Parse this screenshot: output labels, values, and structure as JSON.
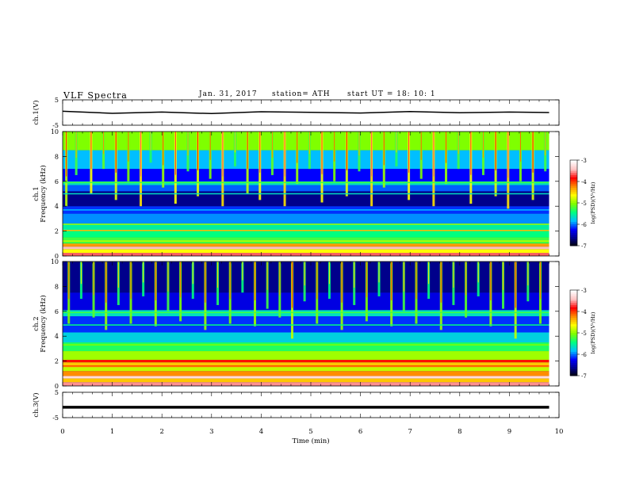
{
  "header": {
    "title": "VLF  Spectra",
    "date": "Jan. 31, 2017",
    "station": "station= ATH",
    "start": "start  UT  =   18: 10: 1"
  },
  "colors": {
    "spectrogram_background": "#0a1e9c",
    "trace": "#000000",
    "colormap": [
      "#000000",
      "#00008b",
      "#0000ff",
      "#00bfff",
      "#00ff7f",
      "#7fff00",
      "#ffff00",
      "#ff8c00",
      "#ff0000",
      "#ffc0c0",
      "#ffffff"
    ]
  },
  "chart_data": [
    {
      "type": "line",
      "panel": "ch1-waveform",
      "ylabel": "ch.1(V)",
      "ylim": [
        -5,
        5
      ],
      "y_ticks": [
        "5",
        "-5"
      ],
      "xlim": [
        0,
        10
      ],
      "series": [
        {
          "x": [
            0,
            1,
            2,
            3,
            4,
            5,
            6,
            7,
            8,
            9,
            9.8
          ],
          "y": [
            0.5,
            -0.3,
            0.2,
            -0.4,
            0.3,
            0.1,
            -0.2,
            0.4,
            -0.1,
            0.2,
            0.0
          ]
        }
      ]
    },
    {
      "type": "heatmap",
      "panel": "ch1-spectrogram",
      "ylabel": "ch.1\nFrequency  (kHz)",
      "ylim": [
        0,
        10
      ],
      "y_ticks": [
        "0",
        "2",
        "4",
        "6",
        "8",
        "10"
      ],
      "xlim": [
        0,
        10
      ],
      "data_end_min": 9.8,
      "colorbar": {
        "label": "log(PSD)(V²/Hz)",
        "range": [
          -7,
          -3
        ],
        "ticks": [
          "-3",
          "-4",
          "-5",
          "-6",
          "-7"
        ]
      },
      "bands": [
        {
          "f": [
            0,
            0.25
          ],
          "level": -3.6
        },
        {
          "f": [
            0.25,
            0.55
          ],
          "level": -4.6
        },
        {
          "f": [
            0.55,
            0.75
          ],
          "level": -3.4
        },
        {
          "f": [
            0.75,
            1.0
          ],
          "level": -4.3
        },
        {
          "f": [
            1.0,
            1.5
          ],
          "level": -5.2
        },
        {
          "f": [
            1.5,
            2.0
          ],
          "level": -5.4
        },
        {
          "f": [
            2.0,
            2.1
          ],
          "level": -4.4
        },
        {
          "f": [
            2.1,
            2.6
          ],
          "level": -5.5
        },
        {
          "f": [
            2.6,
            3.4
          ],
          "level": -5.9
        },
        {
          "f": [
            3.4,
            4.0
          ],
          "level": -6.1
        },
        {
          "f": [
            4.0,
            5.2
          ],
          "level": -6.6
        },
        {
          "f": [
            5.2,
            5.7
          ],
          "level": -6.0
        },
        {
          "f": [
            5.7,
            6.0
          ],
          "level": -5.6
        },
        {
          "f": [
            6.0,
            7.0
          ],
          "level": -6.2
        },
        {
          "f": [
            7.0,
            8.5
          ],
          "level": -5.8
        },
        {
          "f": [
            8.5,
            10.0
          ],
          "level": -5.0
        }
      ],
      "lines": [
        {
          "f": 5.9,
          "level": -5.2
        },
        {
          "f": 5.0,
          "level": -5.6
        },
        {
          "f": 3.7,
          "level": -5.8
        },
        {
          "f": 2.55,
          "level": -4.9
        },
        {
          "f": 1.2,
          "level": -4.8
        },
        {
          "f": 0.85,
          "level": -4.2
        }
      ],
      "bursts": [
        {
          "t": 0.05,
          "f_top": 10.0,
          "f_bot": 4.0,
          "level": -4.8
        },
        {
          "t": 0.25,
          "f_top": 10.0,
          "f_bot": 6.5,
          "level": -5.2
        },
        {
          "t": 0.55,
          "f_top": 10.0,
          "f_bot": 5.0,
          "level": -4.6
        },
        {
          "t": 0.8,
          "f_top": 10.0,
          "f_bot": 7.0,
          "level": -5.1
        },
        {
          "t": 1.05,
          "f_top": 10.0,
          "f_bot": 4.5,
          "level": -4.7
        },
        {
          "t": 1.3,
          "f_top": 10.0,
          "f_bot": 6.0,
          "level": -5.0
        },
        {
          "t": 1.55,
          "f_top": 10.0,
          "f_bot": 4.0,
          "level": -4.5
        },
        {
          "t": 1.75,
          "f_top": 10.0,
          "f_bot": 7.5,
          "level": -5.3
        },
        {
          "t": 2.0,
          "f_top": 10.0,
          "f_bot": 5.5,
          "level": -4.9
        },
        {
          "t": 2.25,
          "f_top": 10.0,
          "f_bot": 4.2,
          "level": -4.6
        },
        {
          "t": 2.5,
          "f_top": 10.0,
          "f_bot": 6.8,
          "level": -5.2
        },
        {
          "t": 2.7,
          "f_top": 10.0,
          "f_bot": 4.8,
          "level": -4.7
        },
        {
          "t": 2.95,
          "f_top": 10.0,
          "f_bot": 6.2,
          "level": -5.0
        },
        {
          "t": 3.2,
          "f_top": 10.0,
          "f_bot": 4.0,
          "level": -4.5
        },
        {
          "t": 3.45,
          "f_top": 10.0,
          "f_bot": 7.2,
          "level": -5.3
        },
        {
          "t": 3.7,
          "f_top": 10.0,
          "f_bot": 5.0,
          "level": -4.8
        },
        {
          "t": 3.95,
          "f_top": 10.0,
          "f_bot": 4.5,
          "level": -4.6
        },
        {
          "t": 4.2,
          "f_top": 10.0,
          "f_bot": 6.5,
          "level": -5.1
        },
        {
          "t": 4.45,
          "f_top": 10.0,
          "f_bot": 4.0,
          "level": -4.5
        },
        {
          "t": 4.7,
          "f_top": 10.0,
          "f_bot": 5.8,
          "level": -4.9
        },
        {
          "t": 4.95,
          "f_top": 10.0,
          "f_bot": 7.0,
          "level": -5.2
        },
        {
          "t": 5.2,
          "f_top": 10.0,
          "f_bot": 4.3,
          "level": -4.6
        },
        {
          "t": 5.45,
          "f_top": 10.0,
          "f_bot": 6.0,
          "level": -5.0
        },
        {
          "t": 5.7,
          "f_top": 10.0,
          "f_bot": 4.8,
          "level": -4.7
        },
        {
          "t": 5.95,
          "f_top": 10.0,
          "f_bot": 6.8,
          "level": -5.2
        },
        {
          "t": 6.2,
          "f_top": 10.0,
          "f_bot": 4.0,
          "level": -4.5
        },
        {
          "t": 6.45,
          "f_top": 10.0,
          "f_bot": 5.5,
          "level": -4.9
        },
        {
          "t": 6.7,
          "f_top": 10.0,
          "f_bot": 7.2,
          "level": -5.3
        },
        {
          "t": 6.95,
          "f_top": 10.0,
          "f_bot": 4.5,
          "level": -4.6
        },
        {
          "t": 7.2,
          "f_top": 10.0,
          "f_bot": 6.2,
          "level": -5.0
        },
        {
          "t": 7.45,
          "f_top": 10.0,
          "f_bot": 4.0,
          "level": -4.5
        },
        {
          "t": 7.7,
          "f_top": 10.0,
          "f_bot": 5.8,
          "level": -4.9
        },
        {
          "t": 7.95,
          "f_top": 10.0,
          "f_bot": 7.0,
          "level": -5.2
        },
        {
          "t": 8.2,
          "f_top": 10.0,
          "f_bot": 4.2,
          "level": -4.6
        },
        {
          "t": 8.45,
          "f_top": 10.0,
          "f_bot": 6.5,
          "level": -5.1
        },
        {
          "t": 8.7,
          "f_top": 10.0,
          "f_bot": 4.8,
          "level": -4.7
        },
        {
          "t": 8.95,
          "f_top": 10.0,
          "f_bot": 3.8,
          "level": -4.5
        },
        {
          "t": 9.2,
          "f_top": 10.0,
          "f_bot": 6.0,
          "level": -5.0
        },
        {
          "t": 9.45,
          "f_top": 10.0,
          "f_bot": 4.5,
          "level": -4.7
        },
        {
          "t": 9.7,
          "f_top": 10.0,
          "f_bot": 6.8,
          "level": -5.2
        }
      ]
    },
    {
      "type": "heatmap",
      "panel": "ch2-spectrogram",
      "ylabel": "ch.2\nFrequency  (kHz)",
      "ylim": [
        0,
        10
      ],
      "y_ticks": [
        "0",
        "2",
        "4",
        "6",
        "8",
        "10"
      ],
      "xlim": [
        0,
        10
      ],
      "data_end_min": 9.8,
      "colorbar": {
        "label": "log(PSD)(V²/Hz)",
        "range": [
          -7,
          -3
        ],
        "ticks": [
          "-3",
          "-4",
          "-5",
          "-6",
          "-7"
        ]
      },
      "bands": [
        {
          "f": [
            0,
            0.3
          ],
          "level": -3.5
        },
        {
          "f": [
            0.3,
            0.6
          ],
          "level": -4.4
        },
        {
          "f": [
            0.6,
            0.8
          ],
          "level": -3.3
        },
        {
          "f": [
            0.8,
            1.2
          ],
          "level": -4.2
        },
        {
          "f": [
            1.2,
            1.5
          ],
          "level": -4.8
        },
        {
          "f": [
            1.5,
            1.9
          ],
          "level": -4.4
        },
        {
          "f": [
            1.9,
            2.1
          ],
          "level": -3.9
        },
        {
          "f": [
            2.1,
            2.8
          ],
          "level": -4.9
        },
        {
          "f": [
            2.8,
            3.5
          ],
          "level": -5.3
        },
        {
          "f": [
            3.5,
            4.3
          ],
          "level": -5.7
        },
        {
          "f": [
            4.3,
            5.6
          ],
          "level": -6.1
        },
        {
          "f": [
            5.6,
            6.1
          ],
          "level": -5.6
        },
        {
          "f": [
            6.1,
            7.5
          ],
          "level": -6.3
        },
        {
          "f": [
            7.5,
            10.0
          ],
          "level": -6.6
        }
      ],
      "lines": [
        {
          "f": 5.9,
          "level": -5.2
        },
        {
          "f": 4.9,
          "level": -5.4
        },
        {
          "f": 3.3,
          "level": -5.0
        },
        {
          "f": 2.0,
          "level": -3.8
        },
        {
          "f": 1.6,
          "level": -4.0
        },
        {
          "f": 0.7,
          "level": -3.2
        }
      ],
      "bursts": [
        {
          "t": 0.1,
          "f_top": 10.0,
          "f_bot": 5.0,
          "level": -5.0
        },
        {
          "t": 0.35,
          "f_top": 10.0,
          "f_bot": 7.0,
          "level": -5.4
        },
        {
          "t": 0.6,
          "f_top": 10.0,
          "f_bot": 5.5,
          "level": -5.1
        },
        {
          "t": 0.85,
          "f_top": 10.0,
          "f_bot": 4.5,
          "level": -4.9
        },
        {
          "t": 1.1,
          "f_top": 10.0,
          "f_bot": 6.5,
          "level": -5.3
        },
        {
          "t": 1.35,
          "f_top": 10.0,
          "f_bot": 5.0,
          "level": -5.0
        },
        {
          "t": 1.6,
          "f_top": 10.0,
          "f_bot": 7.2,
          "level": -5.4
        },
        {
          "t": 1.85,
          "f_top": 10.0,
          "f_bot": 4.8,
          "level": -4.9
        },
        {
          "t": 2.1,
          "f_top": 10.0,
          "f_bot": 6.0,
          "level": -5.2
        },
        {
          "t": 2.35,
          "f_top": 10.0,
          "f_bot": 5.2,
          "level": -5.0
        },
        {
          "t": 2.6,
          "f_top": 10.0,
          "f_bot": 7.0,
          "level": -5.4
        },
        {
          "t": 2.85,
          "f_top": 10.0,
          "f_bot": 4.5,
          "level": -4.9
        },
        {
          "t": 3.1,
          "f_top": 10.0,
          "f_bot": 6.5,
          "level": -5.3
        },
        {
          "t": 3.35,
          "f_top": 10.0,
          "f_bot": 5.0,
          "level": -5.0
        },
        {
          "t": 3.6,
          "f_top": 10.0,
          "f_bot": 7.5,
          "level": -5.4
        },
        {
          "t": 3.85,
          "f_top": 10.0,
          "f_bot": 4.8,
          "level": -4.9
        },
        {
          "t": 4.1,
          "f_top": 10.0,
          "f_bot": 6.2,
          "level": -5.2
        },
        {
          "t": 4.35,
          "f_top": 10.0,
          "f_bot": 5.5,
          "level": -5.1
        },
        {
          "t": 4.6,
          "f_top": 10.0,
          "f_bot": 3.8,
          "level": -4.8
        },
        {
          "t": 4.85,
          "f_top": 10.0,
          "f_bot": 6.8,
          "level": -5.3
        },
        {
          "t": 5.1,
          "f_top": 10.0,
          "f_bot": 5.0,
          "level": -5.0
        },
        {
          "t": 5.35,
          "f_top": 10.0,
          "f_bot": 7.0,
          "level": -5.4
        },
        {
          "t": 5.6,
          "f_top": 10.0,
          "f_bot": 4.5,
          "level": -4.9
        },
        {
          "t": 5.85,
          "f_top": 10.0,
          "f_bot": 6.5,
          "level": -5.3
        },
        {
          "t": 6.1,
          "f_top": 10.0,
          "f_bot": 5.2,
          "level": -5.0
        },
        {
          "t": 6.35,
          "f_top": 10.0,
          "f_bot": 7.2,
          "level": -5.4
        },
        {
          "t": 6.6,
          "f_top": 10.0,
          "f_bot": 4.8,
          "level": -4.9
        },
        {
          "t": 6.85,
          "f_top": 10.0,
          "f_bot": 6.0,
          "level": -5.2
        },
        {
          "t": 7.1,
          "f_top": 10.0,
          "f_bot": 5.0,
          "level": -5.0
        },
        {
          "t": 7.35,
          "f_top": 10.0,
          "f_bot": 7.0,
          "level": -5.4
        },
        {
          "t": 7.6,
          "f_top": 10.0,
          "f_bot": 4.5,
          "level": -4.9
        },
        {
          "t": 7.85,
          "f_top": 10.0,
          "f_bot": 6.5,
          "level": -5.3
        },
        {
          "t": 8.1,
          "f_top": 10.0,
          "f_bot": 5.5,
          "level": -5.1
        },
        {
          "t": 8.35,
          "f_top": 10.0,
          "f_bot": 7.2,
          "level": -5.4
        },
        {
          "t": 8.6,
          "f_top": 10.0,
          "f_bot": 4.8,
          "level": -4.9
        },
        {
          "t": 8.85,
          "f_top": 10.0,
          "f_bot": 6.2,
          "level": -5.2
        },
        {
          "t": 9.1,
          "f_top": 10.0,
          "f_bot": 3.8,
          "level": -4.8
        },
        {
          "t": 9.35,
          "f_top": 10.0,
          "f_bot": 6.8,
          "level": -5.3
        },
        {
          "t": 9.6,
          "f_top": 10.0,
          "f_bot": 5.0,
          "level": -5.0
        }
      ]
    },
    {
      "type": "line",
      "panel": "ch3-waveform",
      "ylabel": "ch.3(V)",
      "ylim": [
        -5,
        5
      ],
      "y_ticks": [
        "5",
        "-5"
      ],
      "xlim": [
        0,
        10
      ],
      "xlabel": "Time  (min)",
      "x_ticks": [
        "0",
        "1",
        "2",
        "3",
        "4",
        "5",
        "6",
        "7",
        "8",
        "9",
        "10"
      ],
      "series": [
        {
          "x": [
            0,
            9.8
          ],
          "y": [
            -0.9,
            -0.9
          ]
        }
      ]
    }
  ]
}
